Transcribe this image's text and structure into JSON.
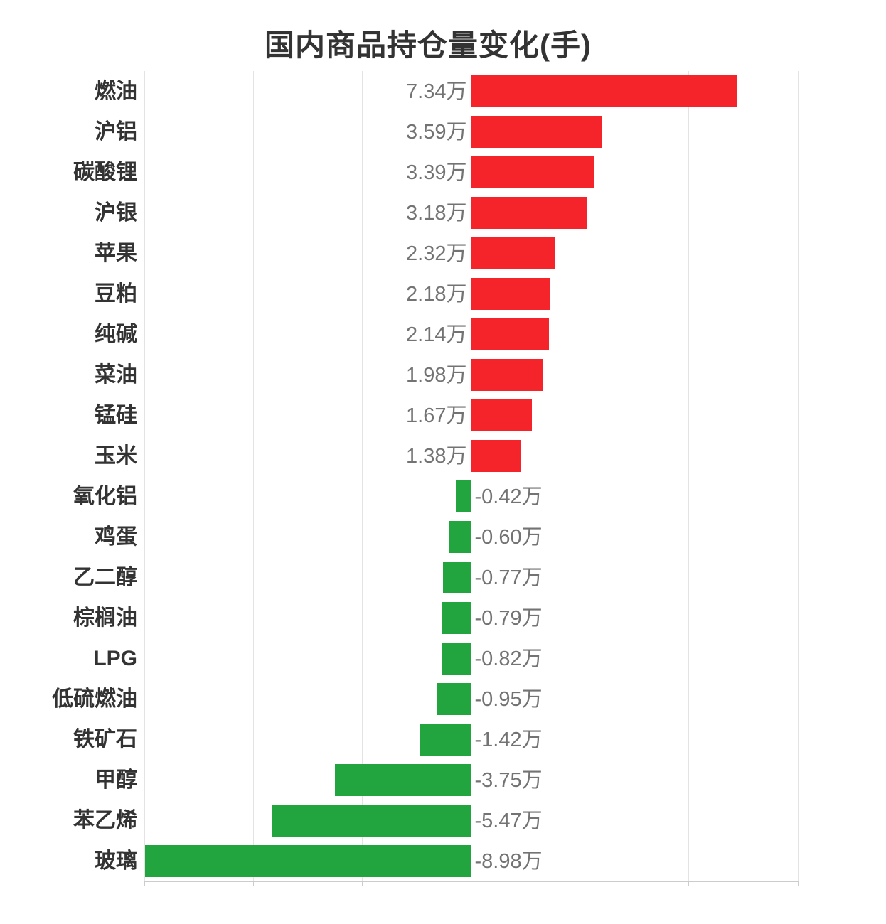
{
  "title": "国内商品持仓量变化(手)",
  "colors": {
    "positive_bar": "#f5242b",
    "negative_bar": "#22a43e",
    "gridline": "#e3e3e3",
    "axis_line": "#cccccc",
    "category_label": "#333333",
    "value_label": "#737373",
    "title_text": "#333333",
    "background": "#ffffff"
  },
  "chart_data": {
    "type": "bar",
    "orientation": "horizontal",
    "title": "国内商品持仓量变化(手)",
    "xlabel": "",
    "ylabel": "",
    "unit": "万",
    "xlim": [
      -9,
      9
    ],
    "grid_interval": 3,
    "axis_tick_values": [
      -9,
      -6,
      -3,
      0,
      3,
      6,
      9
    ],
    "grid": "vertical-only",
    "legend_position": "none",
    "value_label_position": "opposite-side-of-zero-axis",
    "categories": [
      "燃油",
      "沪铝",
      "碳酸锂",
      "沪银",
      "苹果",
      "豆粕",
      "纯碱",
      "菜油",
      "锰硅",
      "玉米",
      "氧化铝",
      "鸡蛋",
      "乙二醇",
      "棕榈油",
      "LPG",
      "低硫燃油",
      "铁矿石",
      "甲醇",
      "苯乙烯",
      "玻璃"
    ],
    "values": [
      7.34,
      3.59,
      3.39,
      3.18,
      2.32,
      2.18,
      2.14,
      1.98,
      1.67,
      1.38,
      -0.42,
      -0.6,
      -0.77,
      -0.79,
      -0.82,
      -0.95,
      -1.42,
      -3.75,
      -5.47,
      -8.98
    ],
    "value_labels": [
      "7.34万",
      "3.59万",
      "3.39万",
      "3.18万",
      "2.32万",
      "2.18万",
      "2.14万",
      "1.98万",
      "1.67万",
      "1.38万",
      "-0.42万",
      "-0.60万",
      "-0.77万",
      "-0.79万",
      "-0.82万",
      "-0.95万",
      "-1.42万",
      "-3.75万",
      "-5.47万",
      "-8.98万"
    ]
  }
}
